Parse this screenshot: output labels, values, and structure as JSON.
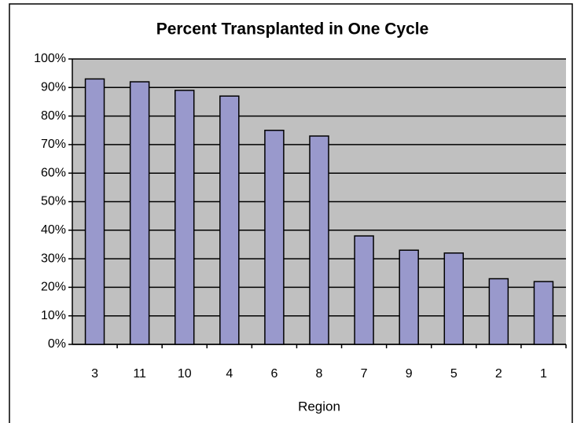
{
  "chart_data": {
    "type": "bar",
    "title": "Percent Transplanted in One Cycle",
    "x_label": "Region",
    "categories": [
      "3",
      "11",
      "10",
      "4",
      "6",
      "8",
      "7",
      "9",
      "5",
      "2",
      "1"
    ],
    "values": [
      93,
      92,
      89,
      87,
      75,
      73,
      38,
      33,
      32,
      23,
      22
    ],
    "color": "#9999cc",
    "ylim": [
      0,
      100
    ],
    "yticks": [
      {
        "value": 0,
        "label": "0%"
      },
      {
        "value": 10,
        "label": "10%"
      },
      {
        "value": 20,
        "label": "20%"
      },
      {
        "value": 30,
        "label": "30%"
      },
      {
        "value": 40,
        "label": "40%"
      },
      {
        "value": 50,
        "label": "50%"
      },
      {
        "value": 60,
        "label": "60%"
      },
      {
        "value": 70,
        "label": "70%"
      },
      {
        "value": 80,
        "label": "80%"
      },
      {
        "value": 90,
        "label": "90%"
      },
      {
        "value": 100,
        "label": "100%"
      }
    ],
    "grid": true
  }
}
